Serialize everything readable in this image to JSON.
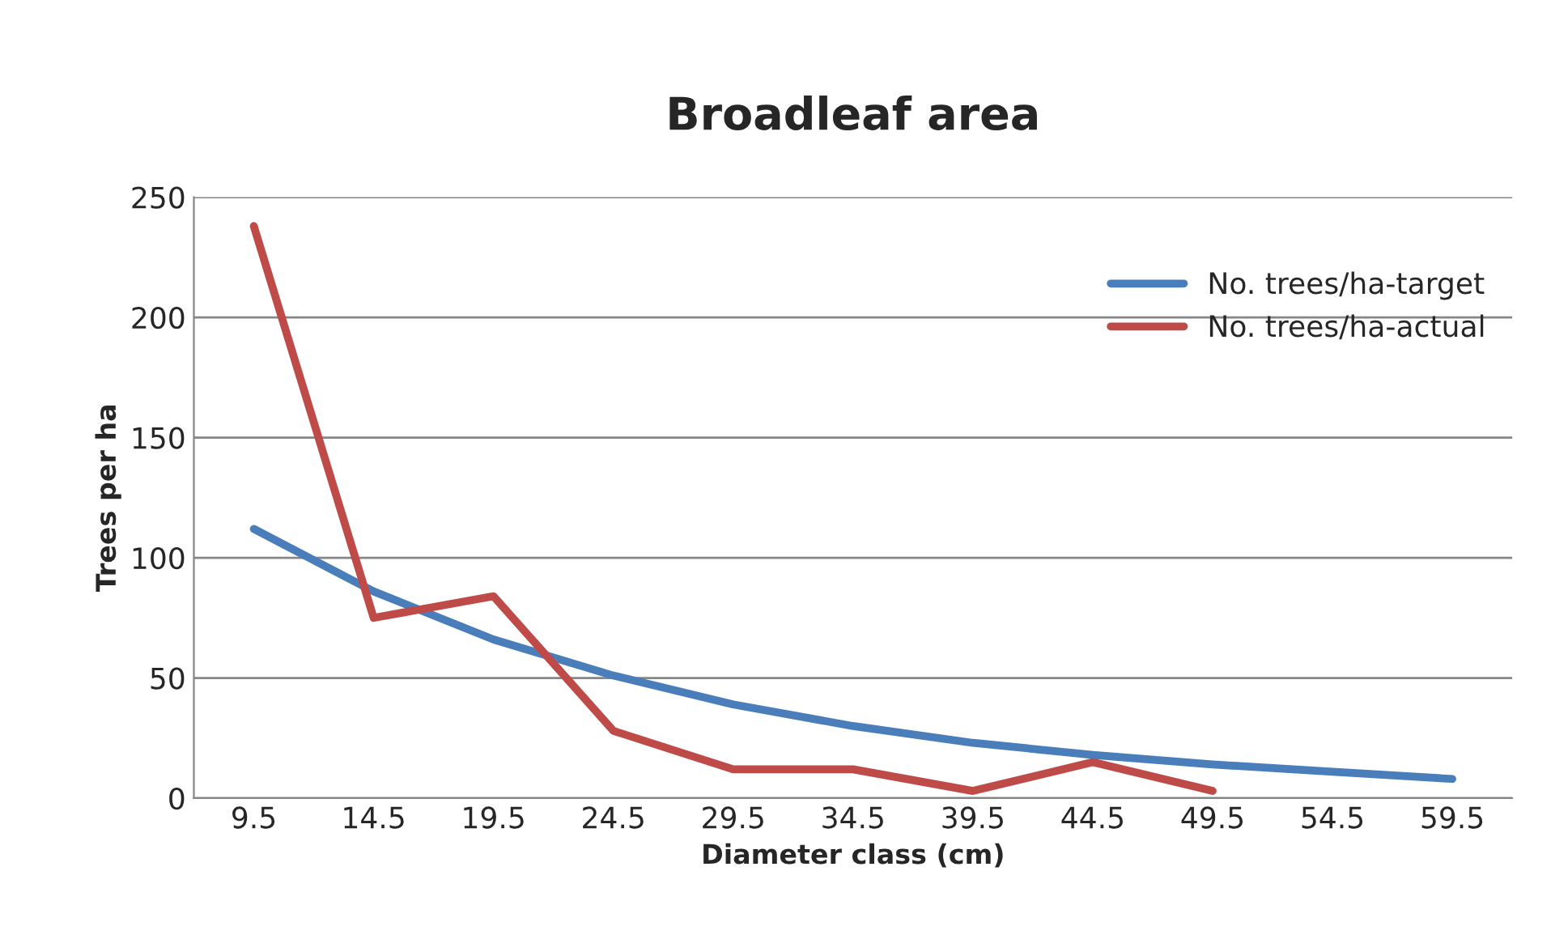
{
  "chart_data": {
    "type": "line",
    "title": "Broadleaf area",
    "xlabel": "Diameter class (cm)",
    "ylabel": "Trees per ha",
    "categories": [
      "9.5",
      "14.5",
      "19.5",
      "24.5",
      "29.5",
      "34.5",
      "39.5",
      "44.5",
      "49.5",
      "54.5",
      "59.5"
    ],
    "series": [
      {
        "name": "No. trees/ha-target",
        "color": "#4a7ebb",
        "values": [
          112,
          86,
          66,
          51,
          39,
          30,
          23,
          18,
          14,
          11,
          8
        ]
      },
      {
        "name": "No. trees/ha-actual",
        "color": "#be4b48",
        "values": [
          238,
          75,
          84,
          28,
          12,
          12,
          3,
          15,
          3,
          null,
          null
        ]
      }
    ],
    "ylim": [
      0,
      250
    ],
    "yticks": [
      0,
      50,
      100,
      150,
      200,
      250
    ],
    "grid": "y",
    "legend": "top right",
    "marker": "none",
    "line_style": "solid"
  }
}
